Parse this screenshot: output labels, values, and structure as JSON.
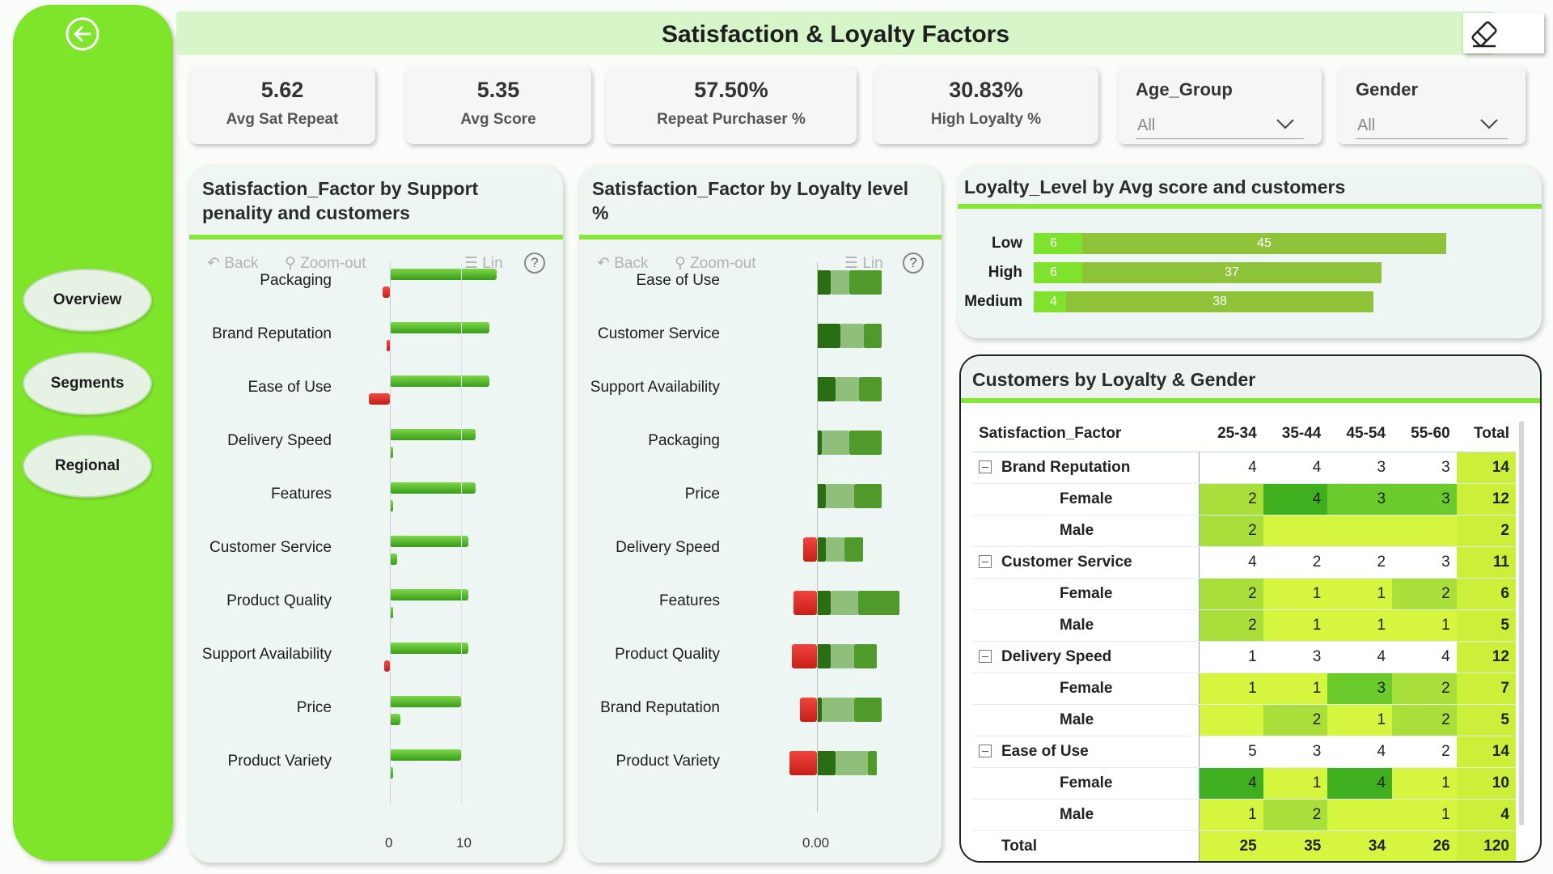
{
  "header": {
    "title": "Satisfaction & Loyalty Factors",
    "eraser_icon": "eraser-icon"
  },
  "sidebar": {
    "back_icon": "arrow-left-circle-icon",
    "items": [
      {
        "label": "Overview"
      },
      {
        "label": "Segments"
      },
      {
        "label": "Regional"
      }
    ]
  },
  "kpis": [
    {
      "value": "5.62",
      "label": "Avg Sat Repeat"
    },
    {
      "value": "5.35",
      "label": "Avg Score"
    },
    {
      "value": "57.50%",
      "label": "Repeat Purchaser %"
    },
    {
      "value": "30.83%",
      "label": "High Loyalty %"
    }
  ],
  "slicers": [
    {
      "title": "Age_Group",
      "value": "All"
    },
    {
      "title": "Gender",
      "value": "All"
    }
  ],
  "toolbar": {
    "back": "Back",
    "zoom_out": "Zoom-out",
    "lin": "Lin",
    "help": "?"
  },
  "chart_support": {
    "title_line1": "Satisfaction_Factor by Support",
    "title_line2": "penality and customers",
    "x_ticks": [
      "0",
      "10"
    ]
  },
  "chart_loyalty": {
    "title_line1": "Satisfaction_Factor by Loyalty level",
    "title_line2": "%",
    "x_ticks": [
      "0.00"
    ]
  },
  "chart_level": {
    "title": "Loyalty_Level by Avg score and customers"
  },
  "matrix": {
    "title": "Customers by Loyalty & Gender",
    "columns": [
      "Satisfaction_Factor",
      "25-34",
      "35-44",
      "45-54",
      "55-60",
      "Total"
    ],
    "rows": [
      {
        "kind": "parent",
        "label": "Brand Reputation",
        "values": [
          "4",
          "4",
          "3",
          "3"
        ],
        "total": "14"
      },
      {
        "kind": "child",
        "label": "Female",
        "values": [
          "2",
          "4",
          "3",
          "3"
        ],
        "total": "12"
      },
      {
        "kind": "child",
        "label": "Male",
        "values": [
          "2",
          "",
          "",
          ""
        ],
        "total": "2"
      },
      {
        "kind": "parent",
        "label": "Customer Service",
        "values": [
          "4",
          "2",
          "2",
          "3"
        ],
        "total": "11"
      },
      {
        "kind": "child",
        "label": "Female",
        "values": [
          "2",
          "1",
          "1",
          "2"
        ],
        "total": "6"
      },
      {
        "kind": "child",
        "label": "Male",
        "values": [
          "2",
          "1",
          "1",
          "1"
        ],
        "total": "5"
      },
      {
        "kind": "parent",
        "label": "Delivery Speed",
        "values": [
          "1",
          "3",
          "4",
          "4"
        ],
        "total": "12"
      },
      {
        "kind": "child",
        "label": "Female",
        "values": [
          "1",
          "1",
          "3",
          "2"
        ],
        "total": "7"
      },
      {
        "kind": "child",
        "label": "Male",
        "values": [
          "",
          "2",
          "1",
          "2"
        ],
        "total": "5"
      },
      {
        "kind": "parent",
        "label": "Ease of Use",
        "values": [
          "5",
          "3",
          "4",
          "2"
        ],
        "total": "14"
      },
      {
        "kind": "child",
        "label": "Female",
        "values": [
          "4",
          "1",
          "4",
          "1"
        ],
        "total": "10"
      },
      {
        "kind": "child",
        "label": "Male",
        "values": [
          "1",
          "2",
          "",
          "1"
        ],
        "total": "4"
      }
    ],
    "grand_total": {
      "label": "Total",
      "values": [
        "25",
        "35",
        "34",
        "26"
      ],
      "total": "120"
    }
  },
  "chart_data": [
    {
      "type": "bar",
      "orientation": "horizontal",
      "title": "Satisfaction_Factor by Support penality and customers",
      "categories": [
        "Packaging",
        "Brand Reputation",
        "Ease of Use",
        "Delivery Speed",
        "Features",
        "Customer Service",
        "Product Quality",
        "Support Availability",
        "Price",
        "Product Variety"
      ],
      "series": [
        {
          "name": "customers",
          "values": [
            15,
            14,
            14,
            12,
            12,
            11,
            11,
            11,
            10,
            10
          ],
          "color": "#4cbb17"
        },
        {
          "name": "Support penality",
          "values": [
            -1,
            -0.5,
            -3,
            0.5,
            0.5,
            1,
            0.2,
            -0.8,
            1.5,
            0.4
          ]
        }
      ],
      "x_ticks": [
        0,
        10
      ],
      "xlim": [
        -3.5,
        16
      ]
    },
    {
      "type": "bar",
      "orientation": "horizontal",
      "stacked": true,
      "title": "Satisfaction_Factor by Loyalty level %",
      "categories": [
        "Ease of Use",
        "Customer Service",
        "Support Availability",
        "Packaging",
        "Price",
        "Delivery Speed",
        "Features",
        "Product Quality",
        "Brand Reputation",
        "Product Variety"
      ],
      "series": [
        {
          "name": "negative",
          "values": [
            0,
            0,
            0,
            0,
            0,
            -0.21,
            -0.36,
            -0.39,
            -0.26,
            -0.43
          ],
          "color": "#e5322d"
        },
        {
          "name": "low",
          "values": [
            0.21,
            0.36,
            0.29,
            0.07,
            0.14,
            0.14,
            0.21,
            0.21,
            0.07,
            0.29
          ],
          "color": "#2a6e14"
        },
        {
          "name": "mid",
          "values": [
            0.29,
            0.36,
            0.36,
            0.43,
            0.43,
            0.29,
            0.43,
            0.36,
            0.5,
            0.5
          ],
          "color": "#8fbf7a"
        },
        {
          "name": "high",
          "values": [
            0.5,
            0.28,
            0.35,
            0.5,
            0.43,
            0.28,
            0.64,
            0.36,
            0.43,
            0.14
          ],
          "color": "#4f9a2a"
        }
      ],
      "x_ticks": [
        "0.00"
      ]
    },
    {
      "type": "bar",
      "orientation": "horizontal",
      "stacked": true,
      "title": "Loyalty_Level by Avg score and customers",
      "categories": [
        "Low",
        "High",
        "Medium"
      ],
      "series": [
        {
          "values": [
            6,
            6,
            4
          ],
          "color": "#7fe22d"
        },
        {
          "values": [
            45,
            37,
            38
          ],
          "color": "#8fc43a"
        }
      ]
    }
  ],
  "colors": {
    "accent": "#7ee52a",
    "header_bg": "#d6f5c8",
    "total_cell": "#ccf03a"
  }
}
